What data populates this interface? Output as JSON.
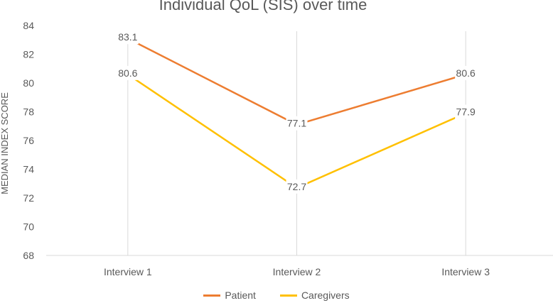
{
  "chart_data": {
    "type": "line",
    "title": "Individual QoL (SIS) over time",
    "xlabel": "",
    "ylabel": "MEDIAN INDEX SCORE",
    "categories": [
      "Interview 1",
      "Interview 2",
      "Interview 3"
    ],
    "ylim": [
      68,
      84
    ],
    "yticks": [
      68,
      70,
      72,
      74,
      76,
      78,
      80,
      82,
      84
    ],
    "grid": "vertical",
    "legend": "bottom",
    "series": [
      {
        "name": "Patient",
        "values": [
          83.1,
          77.1,
          80.6
        ],
        "labels": [
          "83.1",
          "77.1",
          "80.6"
        ],
        "color": "#ED7D31"
      },
      {
        "name": "Caregivers",
        "values": [
          80.6,
          72.7,
          77.9
        ],
        "labels": [
          "80.6",
          "72.7",
          "77.9"
        ],
        "color": "#FFC000"
      }
    ]
  }
}
